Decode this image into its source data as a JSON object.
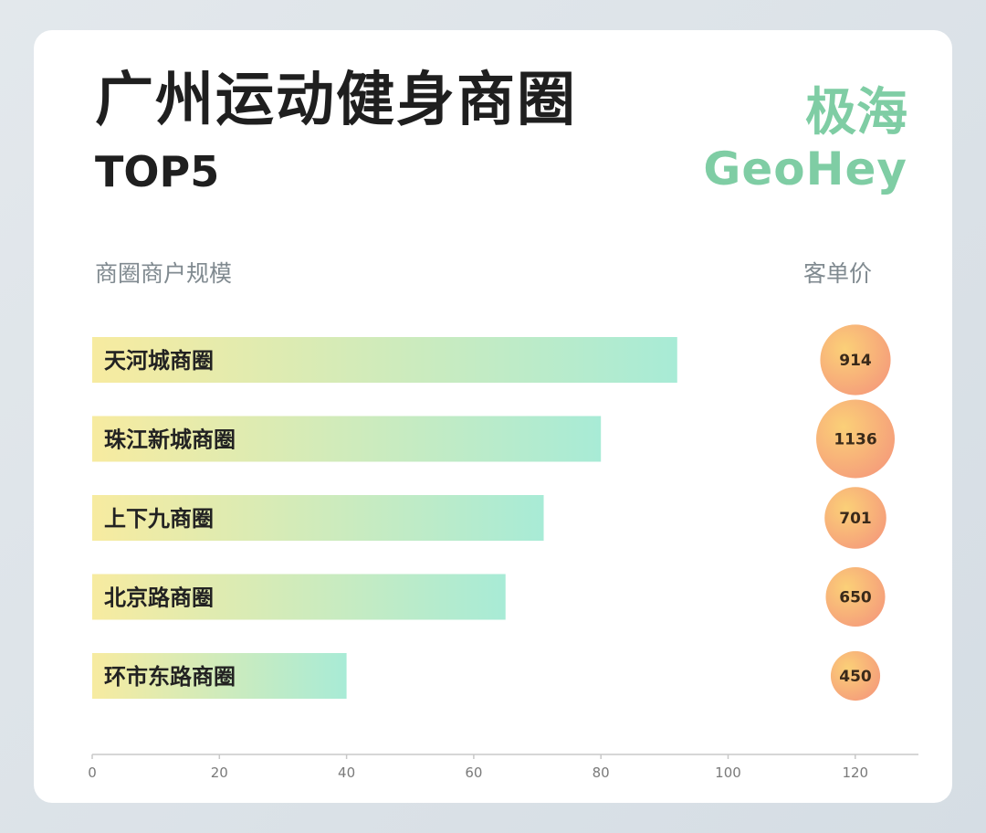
{
  "header": {
    "title": "广州运动健身商圈",
    "subtitle": "TOP5",
    "logo_cn": "极海",
    "logo_en": "GeoHey"
  },
  "columns": {
    "left": "商圈商户规模",
    "right": "客单价"
  },
  "colors": {
    "bar_start": "#f7eba0",
    "bar_end": "#a8ebd6",
    "bubble_inner": "#fbd078",
    "bubble_outer": "#f59c7a",
    "logo": "#7fcda4",
    "axis": "#c8c8c8"
  },
  "chart_data": {
    "type": "bar",
    "orientation": "horizontal",
    "categories": [
      "天河城商圈",
      "珠江新城商圈",
      "上下九商圈",
      "北京路商圈",
      "环市东路商圈"
    ],
    "series": [
      {
        "values": [
          92,
          80,
          71,
          65,
          40
        ]
      },
      {
        "values": [
          914,
          1136,
          701,
          650,
          450
        ]
      }
    ],
    "xlim": [
      0,
      130
    ],
    "xticks": [
      0,
      20,
      40,
      60,
      80,
      100,
      120
    ],
    "xlabel": "",
    "ylabel": "",
    "grid": false
  }
}
